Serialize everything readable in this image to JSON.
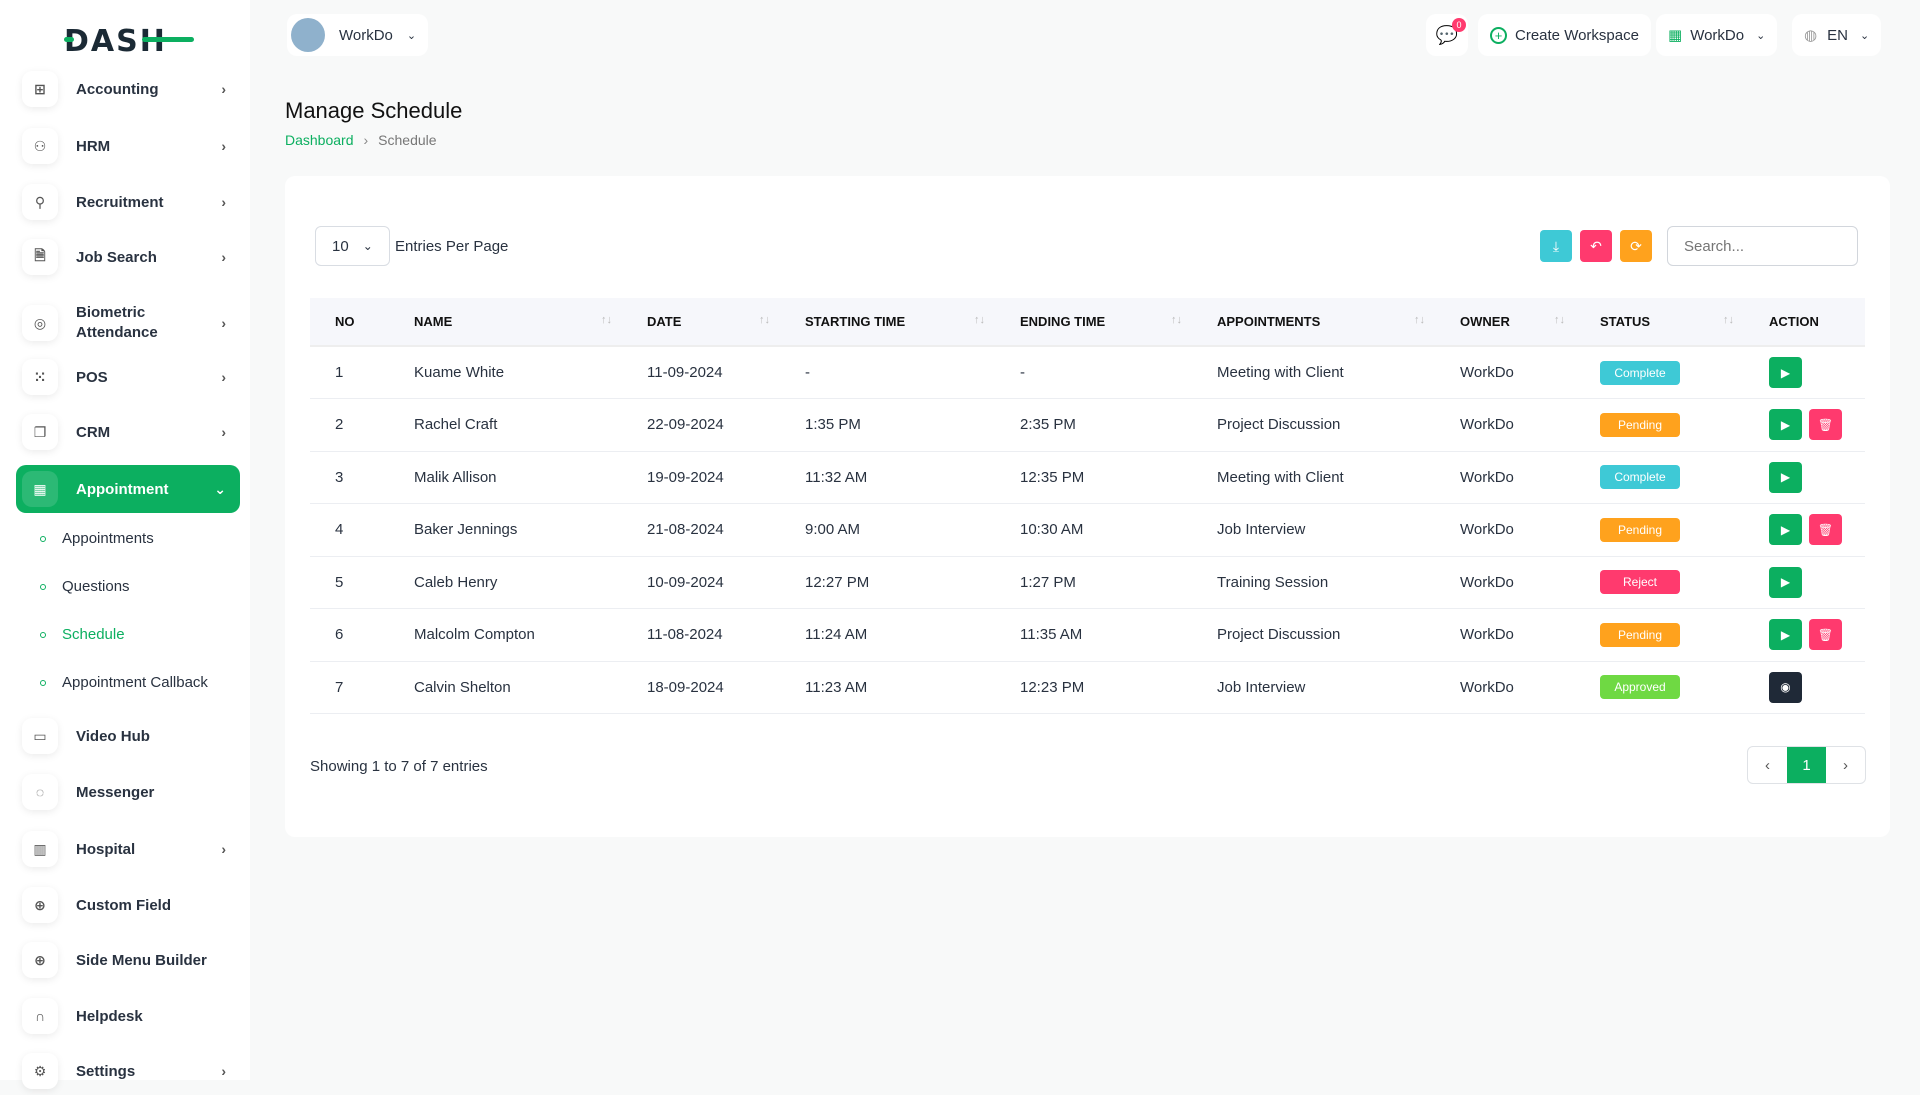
{
  "brand": {
    "logo_text": "DASH",
    "accent": "#0caf60"
  },
  "header": {
    "workspace": "WorkDo",
    "notification_count": "0",
    "create_workspace": "Create Workspace",
    "workspace_menu": "WorkDo",
    "language": "EN"
  },
  "sidebar": {
    "items": [
      {
        "label": "Accounting",
        "icon": "grid-plus-icon",
        "chevron": true
      },
      {
        "label": "HRM",
        "icon": "users-icon",
        "chevron": true
      },
      {
        "label": "Recruitment",
        "icon": "user-plus-icon",
        "chevron": true
      },
      {
        "label": "Job Search",
        "icon": "file-search-icon",
        "chevron": true
      },
      {
        "label": "Biometric Attendance",
        "icon": "fingerprint-icon",
        "chevron": true
      },
      {
        "label": "POS",
        "icon": "grid-dots-icon",
        "chevron": true
      },
      {
        "label": "CRM",
        "icon": "layers-icon",
        "chevron": true
      },
      {
        "label": "Appointment",
        "icon": "calendar-icon",
        "chevron": true,
        "active": true
      },
      {
        "label": "Video Hub",
        "icon": "video-icon",
        "chevron": false
      },
      {
        "label": "Messenger",
        "icon": "message-icon",
        "chevron": false
      },
      {
        "label": "Hospital",
        "icon": "building-icon",
        "chevron": true
      },
      {
        "label": "Custom Field",
        "icon": "circle-plus-icon",
        "chevron": false
      },
      {
        "label": "Side Menu Builder",
        "icon": "circle-plus-icon",
        "chevron": false
      },
      {
        "label": "Helpdesk",
        "icon": "headset-icon",
        "chevron": false
      },
      {
        "label": "Settings",
        "icon": "gear-icon",
        "chevron": true
      }
    ],
    "subitems": [
      {
        "label": "Appointments"
      },
      {
        "label": "Questions"
      },
      {
        "label": "Schedule",
        "active": true
      },
      {
        "label": "Appointment Callback"
      }
    ]
  },
  "page": {
    "title": "Manage Schedule",
    "breadcrumb": [
      "Dashboard",
      "Schedule"
    ]
  },
  "table_controls": {
    "entries_value": "10",
    "entries_label": "Entries Per Page",
    "search_placeholder": "Search..."
  },
  "table": {
    "columns": [
      "NO",
      "NAME",
      "DATE",
      "STARTING TIME",
      "ENDING TIME",
      "APPOINTMENTS",
      "OWNER",
      "STATUS",
      "ACTION"
    ],
    "rows": [
      {
        "no": "1",
        "name": "Kuame White",
        "date": "11-09-2024",
        "start": "-",
        "end": "-",
        "appointment": "Meeting with Client",
        "owner": "WorkDo",
        "status": "Complete",
        "actions": [
          "play"
        ]
      },
      {
        "no": "2",
        "name": "Rachel Craft",
        "date": "22-09-2024",
        "start": "1:35 PM",
        "end": "2:35 PM",
        "appointment": "Project Discussion",
        "owner": "WorkDo",
        "status": "Pending",
        "actions": [
          "play",
          "delete"
        ]
      },
      {
        "no": "3",
        "name": "Malik Allison",
        "date": "19-09-2024",
        "start": "11:32 AM",
        "end": "12:35 PM",
        "appointment": "Meeting with Client",
        "owner": "WorkDo",
        "status": "Complete",
        "actions": [
          "play"
        ]
      },
      {
        "no": "4",
        "name": "Baker Jennings",
        "date": "21-08-2024",
        "start": "9:00 AM",
        "end": "10:30 AM",
        "appointment": "Job Interview",
        "owner": "WorkDo",
        "status": "Pending",
        "actions": [
          "play",
          "delete"
        ]
      },
      {
        "no": "5",
        "name": "Caleb Henry",
        "date": "10-09-2024",
        "start": "12:27 PM",
        "end": "1:27 PM",
        "appointment": "Training Session",
        "owner": "WorkDo",
        "status": "Reject",
        "actions": [
          "play"
        ]
      },
      {
        "no": "6",
        "name": "Malcolm Compton",
        "date": "11-08-2024",
        "start": "11:24 AM",
        "end": "11:35 AM",
        "appointment": "Project Discussion",
        "owner": "WorkDo",
        "status": "Pending",
        "actions": [
          "play",
          "delete"
        ]
      },
      {
        "no": "7",
        "name": "Calvin Shelton",
        "date": "18-09-2024",
        "start": "11:23 AM",
        "end": "12:23 PM",
        "appointment": "Job Interview",
        "owner": "WorkDo",
        "status": "Approved",
        "actions": [
          "view"
        ]
      }
    ]
  },
  "status_colors": {
    "Complete": "#3ec9d6",
    "Pending": "#ffa21d",
    "Reject": "#ff3a6e",
    "Approved": "#6fd943"
  },
  "footer": {
    "showing": "Showing 1 to 7 of 7 entries",
    "current_page": "1",
    "prev": "‹",
    "next": "›"
  }
}
